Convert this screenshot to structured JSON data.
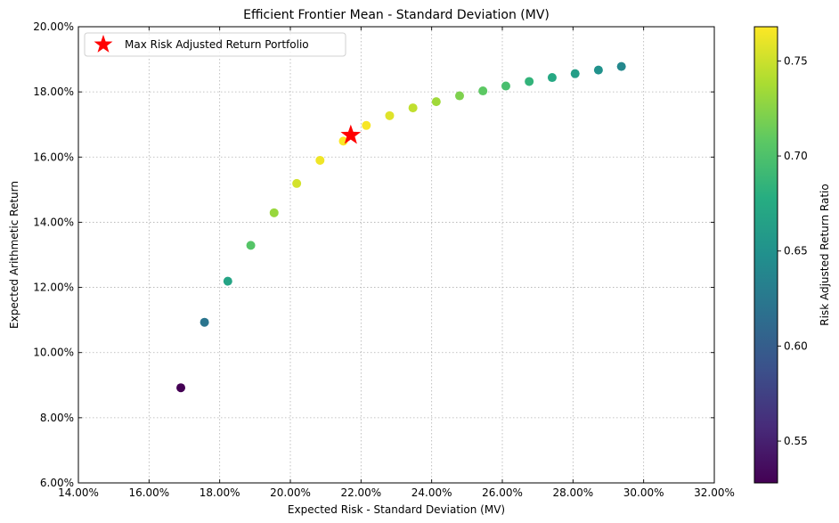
{
  "chart_data": {
    "type": "scatter",
    "title": "Efficient Frontier Mean - Standard Deviation (MV)",
    "xlabel": "Expected Risk - Standard Deviation (MV)",
    "ylabel": "Expected Arithmetic Return",
    "xlim": [
      0.14,
      0.32
    ],
    "ylim": [
      0.06,
      0.2
    ],
    "x_ticks": [
      0.14,
      0.16,
      0.18,
      0.2,
      0.22,
      0.24,
      0.26,
      0.28,
      0.3,
      0.32
    ],
    "x_tick_labels": [
      "14.00%",
      "16.00%",
      "18.00%",
      "20.00%",
      "22.00%",
      "24.00%",
      "26.00%",
      "28.00%",
      "30.00%",
      "32.00%"
    ],
    "y_ticks": [
      0.06,
      0.08,
      0.1,
      0.12,
      0.14,
      0.16,
      0.18,
      0.2
    ],
    "y_tick_labels": [
      "6.00%",
      "8.00%",
      "10.00%",
      "12.00%",
      "14.00%",
      "16.00%",
      "18.00%",
      "20.00%"
    ],
    "grid": true,
    "colormap": "viridis",
    "colorbar": {
      "label": "Risk Adjusted Return Ratio",
      "range": [
        0.528,
        0.768
      ],
      "ticks": [
        0.55,
        0.6,
        0.65,
        0.7,
        0.75
      ],
      "tick_labels": [
        "0.55",
        "0.60",
        "0.65",
        "0.70",
        "0.75"
      ]
    },
    "points": [
      {
        "x": 0.169,
        "y": 0.0892,
        "ratio": 0.528
      },
      {
        "x": 0.1757,
        "y": 0.1093,
        "ratio": 0.622
      },
      {
        "x": 0.1823,
        "y": 0.1219,
        "ratio": 0.669
      },
      {
        "x": 0.1888,
        "y": 0.1329,
        "ratio": 0.704
      },
      {
        "x": 0.1954,
        "y": 0.1429,
        "ratio": 0.731
      },
      {
        "x": 0.2018,
        "y": 0.1519,
        "ratio": 0.753
      },
      {
        "x": 0.2084,
        "y": 0.159,
        "ratio": 0.763
      },
      {
        "x": 0.215,
        "y": 0.1649,
        "ratio": 0.767
      },
      {
        "x": 0.2215,
        "y": 0.1697,
        "ratio": 0.766
      },
      {
        "x": 0.2281,
        "y": 0.1727,
        "ratio": 0.757
      },
      {
        "x": 0.2347,
        "y": 0.1751,
        "ratio": 0.746
      },
      {
        "x": 0.2413,
        "y": 0.177,
        "ratio": 0.734
      },
      {
        "x": 0.2479,
        "y": 0.1788,
        "ratio": 0.721
      },
      {
        "x": 0.2545,
        "y": 0.1803,
        "ratio": 0.708
      },
      {
        "x": 0.261,
        "y": 0.1818,
        "ratio": 0.697
      },
      {
        "x": 0.2676,
        "y": 0.1832,
        "ratio": 0.685
      },
      {
        "x": 0.2741,
        "y": 0.1844,
        "ratio": 0.673
      },
      {
        "x": 0.2806,
        "y": 0.1856,
        "ratio": 0.662
      },
      {
        "x": 0.2872,
        "y": 0.1867,
        "ratio": 0.65
      },
      {
        "x": 0.2937,
        "y": 0.1878,
        "ratio": 0.64
      }
    ],
    "highlight": {
      "label": "Max Risk Adjusted Return Portfolio",
      "x": 0.2171,
      "y": 0.1667,
      "marker": "star",
      "color": "#ff0000"
    },
    "legend_position": "top-left"
  }
}
